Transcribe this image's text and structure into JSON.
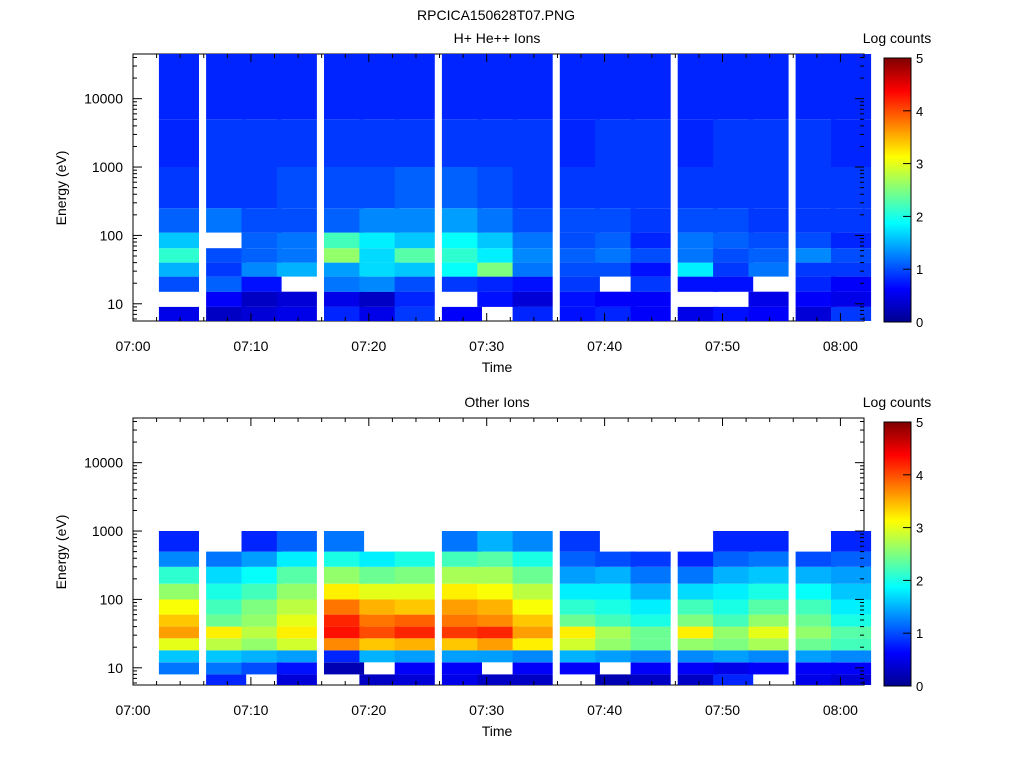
{
  "figure_title": "RPCICA150628T07.PNG",
  "colormap": [
    "#00008f",
    "#0000ff",
    "#007fff",
    "#00ffff",
    "#7fff7f",
    "#ffff00",
    "#ff7f00",
    "#ff0000",
    "#7f0000"
  ],
  "chart_data": [
    {
      "type": "heatmap",
      "title": "H+ He++ Ions",
      "xlabel": "Time",
      "ylabel": "Energy (eV)",
      "x_ticks": [
        "07:00",
        "07:10",
        "07:20",
        "07:30",
        "07:40",
        "07:50",
        "08:00"
      ],
      "y_ticks": [
        "10",
        "100",
        "1000",
        "10000"
      ],
      "y_scale": "log",
      "y_range": [
        5.6,
        45000
      ],
      "x_range": [
        "07:00",
        "08:02"
      ],
      "colorbar": {
        "label": "Log counts",
        "ticks": [
          "0",
          "1",
          "2",
          "3",
          "4",
          "5"
        ],
        "range": [
          0,
          5
        ]
      },
      "time_bins": [
        "07:02",
        "07:06",
        "07:09",
        "07:12",
        "07:16",
        "07:19",
        "07:22",
        "07:26",
        "07:29",
        "07:32",
        "07:36",
        "07:39",
        "07:42",
        "07:46",
        "07:49",
        "07:52",
        "07:56",
        "07:59"
      ],
      "bands": [
        {
          "e_range": [
            5.6,
            9
          ],
          "values": [
            0.5,
            0.3,
            0.4,
            0.5,
            0.8,
            0.5,
            0.9,
            0.6,
            null,
            0.8,
            0.7,
            0.8,
            0.6,
            0.5,
            0.7,
            0.6,
            0.4,
            0.9
          ]
        },
        {
          "e_range": [
            9,
            15
          ],
          "values": [
            null,
            0.6,
            0.3,
            0.4,
            0.5,
            0.3,
            0.8,
            null,
            0.7,
            0.4,
            0.7,
            0.6,
            0.6,
            null,
            null,
            0.5,
            0.6,
            0.5
          ]
        },
        {
          "e_range": [
            15,
            25
          ],
          "values": [
            1.0,
            1.1,
            0.7,
            null,
            1.2,
            1.3,
            1.0,
            0.9,
            0.8,
            0.7,
            0.9,
            null,
            0.9,
            0.7,
            0.7,
            null,
            0.8,
            0.6
          ]
        },
        {
          "e_range": [
            25,
            40
          ],
          "values": [
            1.5,
            0.9,
            1.3,
            1.5,
            1.4,
            1.7,
            1.6,
            1.9,
            2.5,
            1.2,
            1.0,
            1.0,
            0.7,
            1.8,
            0.9,
            1.2,
            0.9,
            0.9
          ]
        },
        {
          "e_range": [
            40,
            65
          ],
          "values": [
            2.1,
            1.0,
            1.1,
            1.2,
            2.6,
            1.7,
            2.3,
            2.1,
            1.8,
            1.3,
            1.1,
            1.2,
            1.0,
            1.2,
            1.0,
            1.1,
            1.3,
            1.0
          ]
        },
        {
          "e_range": [
            65,
            110
          ],
          "values": [
            1.6,
            null,
            1.1,
            1.2,
            2.2,
            1.8,
            1.6,
            1.9,
            1.6,
            1.2,
            1.0,
            1.1,
            0.8,
            1.2,
            1.1,
            1.0,
            1.0,
            0.8
          ]
        },
        {
          "e_range": [
            110,
            250
          ],
          "values": [
            1.1,
            1.2,
            1.0,
            1.0,
            1.1,
            1.3,
            1.3,
            1.4,
            1.2,
            1.0,
            1.0,
            1.0,
            0.9,
            1.0,
            1.0,
            0.9,
            0.9,
            0.9
          ]
        },
        {
          "e_range": [
            250,
            1000
          ],
          "values": [
            0.9,
            0.9,
            0.9,
            1.0,
            1.0,
            1.0,
            1.1,
            1.1,
            1.0,
            0.9,
            0.9,
            0.9,
            0.9,
            0.9,
            0.9,
            0.9,
            0.9,
            0.9
          ]
        },
        {
          "e_range": [
            1000,
            5000
          ],
          "values": [
            0.8,
            0.9,
            0.9,
            0.9,
            0.9,
            0.9,
            0.9,
            0.9,
            0.9,
            0.9,
            0.8,
            0.9,
            0.9,
            0.8,
            0.9,
            0.9,
            0.9,
            0.8
          ]
        },
        {
          "e_range": [
            5000,
            45000
          ],
          "values": [
            0.8,
            0.8,
            0.8,
            0.8,
            0.8,
            0.8,
            0.8,
            0.8,
            0.8,
            0.8,
            0.8,
            0.8,
            0.8,
            0.8,
            0.8,
            0.8,
            0.8,
            0.8
          ]
        }
      ]
    },
    {
      "type": "heatmap",
      "title": "Other Ions",
      "xlabel": "Time",
      "ylabel": "Energy (eV)",
      "x_ticks": [
        "07:00",
        "07:10",
        "07:20",
        "07:30",
        "07:40",
        "07:50",
        "08:00"
      ],
      "y_ticks": [
        "10",
        "100",
        "1000",
        "10000"
      ],
      "y_scale": "log",
      "y_range": [
        5.6,
        45000
      ],
      "x_range": [
        "07:00",
        "08:02"
      ],
      "colorbar": {
        "label": "Log counts",
        "ticks": [
          "0",
          "1",
          "2",
          "3",
          "4",
          "5"
        ],
        "range": [
          0,
          5
        ]
      },
      "time_bins": [
        "07:02",
        "07:06",
        "07:09",
        "07:12",
        "07:16",
        "07:19",
        "07:22",
        "07:26",
        "07:29",
        "07:32",
        "07:36",
        "07:39",
        "07:42",
        "07:46",
        "07:49",
        "07:52",
        "07:56",
        "07:59"
      ],
      "bands": [
        {
          "e_range": [
            5.6,
            8
          ],
          "values": [
            null,
            0.8,
            null,
            0.4,
            null,
            0.3,
            0.4,
            0.5,
            0.3,
            0.3,
            null,
            0.2,
            0.3,
            0.3,
            0.8,
            null,
            0.5,
            0.4
          ]
        },
        {
          "e_range": [
            8,
            12
          ],
          "values": [
            1.2,
            1.2,
            1.0,
            0.7,
            0.2,
            null,
            0.6,
            0.6,
            null,
            0.6,
            0.6,
            null,
            0.6,
            0.6,
            0.5,
            0.6,
            0.6,
            0.6
          ]
        },
        {
          "e_range": [
            12,
            18
          ],
          "values": [
            1.6,
            1.6,
            1.5,
            1.4,
            0.8,
            1.5,
            1.4,
            1.4,
            1.4,
            1.3,
            1.5,
            1.4,
            1.3,
            1.3,
            1.4,
            1.3,
            1.4,
            1.3
          ]
        },
        {
          "e_range": [
            18,
            27
          ],
          "values": [
            3.0,
            2.8,
            2.6,
            2.9,
            3.7,
            3.4,
            3.5,
            3.4,
            3.6,
            3.2,
            2.9,
            2.6,
            2.4,
            2.6,
            2.5,
            2.7,
            2.4,
            2.2
          ]
        },
        {
          "e_range": [
            27,
            40
          ],
          "values": [
            3.6,
            3.2,
            2.8,
            3.2,
            4.3,
            4.0,
            4.2,
            4.1,
            4.2,
            3.6,
            3.2,
            2.7,
            2.4,
            3.2,
            2.6,
            3.0,
            2.6,
            2.3
          ]
        },
        {
          "e_range": [
            40,
            60
          ],
          "values": [
            3.4,
            2.4,
            2.6,
            3.0,
            4.2,
            3.8,
            3.9,
            3.8,
            3.7,
            3.4,
            2.4,
            2.2,
            2.0,
            2.5,
            2.2,
            2.6,
            2.4,
            2.0
          ]
        },
        {
          "e_range": [
            60,
            100
          ],
          "values": [
            3.1,
            2.2,
            2.5,
            2.8,
            3.8,
            3.5,
            3.4,
            3.6,
            3.5,
            3.1,
            2.1,
            2.0,
            1.8,
            2.2,
            2.0,
            2.3,
            2.2,
            1.8
          ]
        },
        {
          "e_range": [
            100,
            170
          ],
          "values": [
            2.6,
            2.0,
            2.2,
            2.6,
            3.2,
            3.0,
            3.0,
            3.2,
            3.1,
            2.8,
            1.8,
            1.8,
            1.5,
            1.7,
            1.8,
            2.0,
            1.9,
            1.6
          ]
        },
        {
          "e_range": [
            170,
            300
          ],
          "values": [
            2.1,
            1.7,
            1.9,
            2.3,
            2.6,
            2.4,
            2.5,
            2.7,
            2.7,
            2.4,
            1.4,
            1.5,
            1.2,
            1.2,
            1.5,
            1.6,
            1.5,
            1.4
          ]
        },
        {
          "e_range": [
            300,
            500
          ],
          "values": [
            1.3,
            1.2,
            1.4,
            1.8,
            2.0,
            1.8,
            2.0,
            2.2,
            2.3,
            2.0,
            1.1,
            1.0,
            0.9,
            0.8,
            1.1,
            1.2,
            1.0,
            1.1
          ]
        },
        {
          "e_range": [
            500,
            1000
          ],
          "values": [
            0.8,
            null,
            0.8,
            1.1,
            1.2,
            null,
            null,
            1.2,
            1.5,
            1.3,
            0.9,
            null,
            null,
            null,
            0.8,
            0.8,
            null,
            0.8
          ]
        }
      ]
    }
  ]
}
